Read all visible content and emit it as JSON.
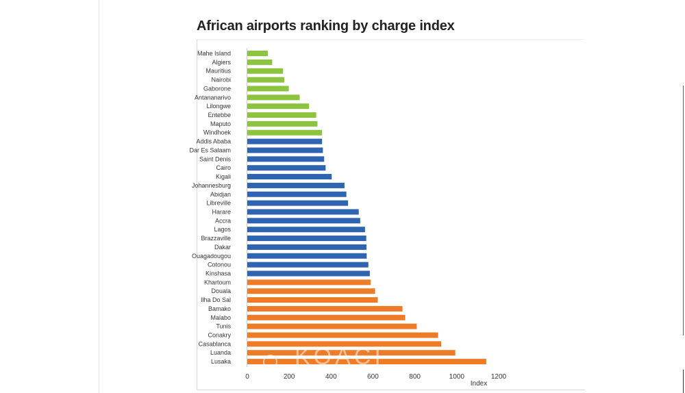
{
  "chart_data": {
    "type": "bar",
    "orientation": "horizontal",
    "title": "African airports ranking by charge index",
    "xlabel": "Index",
    "ylabel": "",
    "xlim": [
      0,
      1200
    ],
    "xticks": [
      0,
      200,
      400,
      600,
      800,
      1000,
      1200
    ],
    "grid": false,
    "categories": [
      "Mahe Island",
      "Algiers",
      "Mauritius",
      "Nairobi",
      "Gaborone",
      "Antananarivo",
      "Lilongwe",
      "Entebbe",
      "Maputo",
      "Windhoek",
      "Addis Ababa",
      "Dar Es Salaam",
      "Saint Denis",
      "Cairo",
      "Kigali",
      "Johannesburg",
      "Abidjan",
      "Libreville",
      "Harare",
      "Accra",
      "Lagos",
      "Brazzaville",
      "Dakar",
      "Ouagadougou",
      "Cotonou",
      "Kinshasa",
      "Khartoum",
      "Douala",
      "Ilha Do Sal",
      "Bamako",
      "Malabo",
      "Tunis",
      "Conakry",
      "Casablanca",
      "Luanda",
      "Lusaka"
    ],
    "values": [
      98,
      119,
      171,
      177,
      198,
      250,
      295,
      329,
      335,
      357,
      357,
      361,
      367,
      374,
      403,
      464,
      473,
      481,
      532,
      539,
      562,
      568,
      569,
      570,
      578,
      585,
      589,
      610,
      623,
      741,
      754,
      809,
      911,
      926,
      993,
      1141
    ],
    "groups": [
      "green",
      "green",
      "green",
      "green",
      "green",
      "green",
      "green",
      "green",
      "green",
      "green",
      "blue",
      "blue",
      "blue",
      "blue",
      "blue",
      "blue",
      "blue",
      "blue",
      "blue",
      "blue",
      "blue",
      "blue",
      "blue",
      "blue",
      "blue",
      "blue",
      "orange",
      "orange",
      "orange",
      "orange",
      "orange",
      "orange",
      "orange",
      "orange",
      "orange",
      "orange"
    ]
  },
  "colors": {
    "green": "#8cc43f",
    "blue": "#2e64b0",
    "orange": "#ee7b26"
  },
  "watermark": "KOACI"
}
